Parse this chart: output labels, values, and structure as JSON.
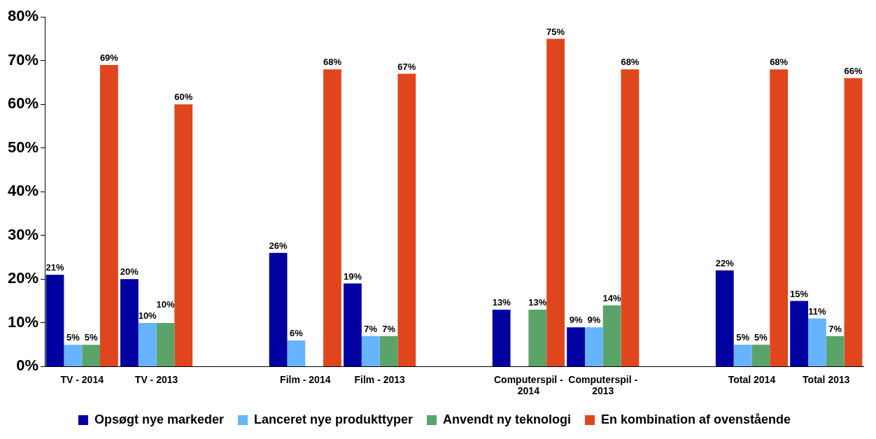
{
  "chart_data": {
    "type": "bar",
    "categories": [
      "TV - 2014",
      "TV - 2013",
      null,
      "Film - 2014",
      "Film - 2013",
      null,
      "Computerspil - 2014",
      "Computerspil - 2013",
      null,
      "Total 2014",
      "Total 2013"
    ],
    "series": [
      {
        "name": "Opsøgt nye markeder",
        "color": "#0000a0",
        "values": [
          21,
          20,
          null,
          26,
          19,
          null,
          13,
          9,
          null,
          22,
          15
        ],
        "value_labels": [
          "21%",
          "20%",
          null,
          "26%",
          "19%",
          null,
          "13%",
          "9%",
          null,
          "22%",
          "15%"
        ]
      },
      {
        "name": "Lanceret nye produkttyper",
        "color": "#66b3ff",
        "values": [
          5,
          10,
          null,
          6,
          7,
          null,
          null,
          9,
          null,
          5,
          11
        ],
        "value_labels": [
          "5%",
          "10%",
          null,
          "6%",
          "7%",
          null,
          null,
          "9%",
          null,
          "5%",
          "11%"
        ]
      },
      {
        "name": "Anvendt ny teknologi",
        "color": "#5aa469",
        "values": [
          5,
          10,
          null,
          null,
          7,
          null,
          13,
          14,
          null,
          5,
          7
        ],
        "value_labels": [
          "5%",
          "10%",
          null,
          null,
          "7%",
          null,
          "13%",
          "14%",
          null,
          "5%",
          "7%"
        ]
      },
      {
        "name": "En kombination af ovenstående",
        "color": "#e0461e",
        "values": [
          69,
          60,
          null,
          68,
          67,
          null,
          75,
          68,
          null,
          68,
          66
        ],
        "value_labels": [
          "69%",
          "60%",
          null,
          "68%",
          "67%",
          null,
          "75%",
          "68%",
          null,
          "68%",
          "66%"
        ]
      }
    ],
    "ylim": [
      0,
      80
    ],
    "yticks": [
      {
        "value": 0,
        "label": "0%"
      },
      {
        "value": 10,
        "label": "10%"
      },
      {
        "value": 20,
        "label": "20%"
      },
      {
        "value": 30,
        "label": "30%"
      },
      {
        "value": 40,
        "label": "40%"
      },
      {
        "value": 50,
        "label": "50%"
      },
      {
        "value": 60,
        "label": "60%"
      },
      {
        "value": 70,
        "label": "70%"
      },
      {
        "value": 80,
        "label": "80%"
      }
    ],
    "grid": false,
    "legend": "bottom"
  }
}
